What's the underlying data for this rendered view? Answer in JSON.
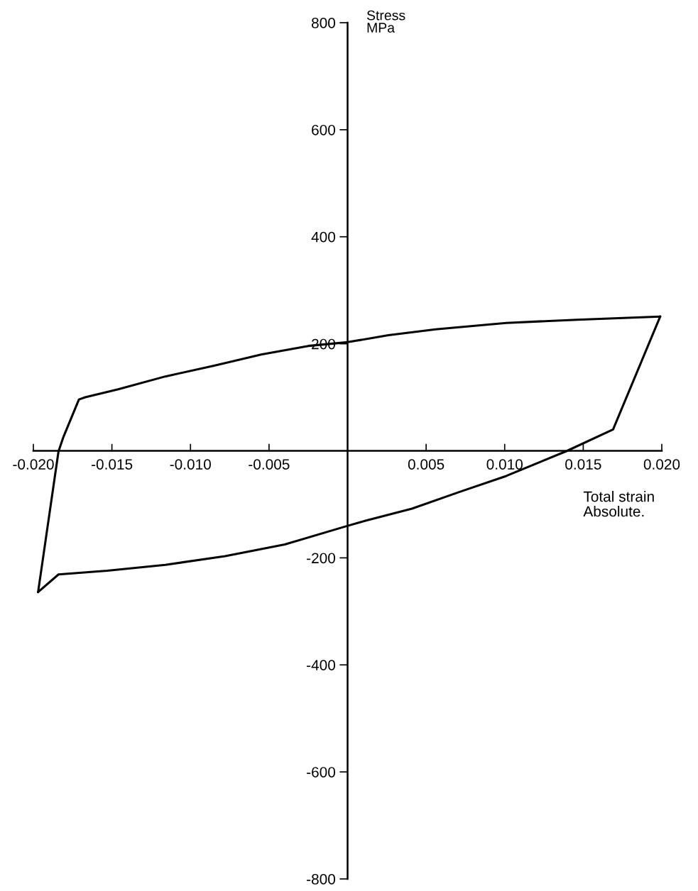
{
  "chart_data": {
    "type": "line",
    "xlabel": "Total strain\nAbsolute.",
    "ylabel": "Stress\nMPa",
    "series": [
      {
        "color": "#000000",
        "x": [
          -0.0197,
          -0.0184,
          -0.0181,
          -0.0171,
          -0.0167,
          -0.0146,
          -0.0116,
          -0.0085,
          -0.0055,
          -0.0025,
          0.0,
          0.0026,
          0.0056,
          0.0101,
          0.0146,
          0.0199
        ],
        "values": [
          -264,
          -1,
          25,
          96,
          100,
          115,
          139,
          159,
          180,
          196,
          203,
          216,
          227,
          239,
          245,
          251
        ]
      },
      {
        "color": "#000000",
        "x": [
          0.0199,
          0.0169,
          0.0139,
          0.0101,
          0.0071,
          0.0041,
          0.0011,
          -0.0001,
          -0.004,
          -0.0078,
          -0.0116,
          -0.0153,
          -0.0184,
          -0.0197
        ],
        "values": [
          251,
          40,
          -1,
          -47,
          -77,
          -108,
          -131,
          -141,
          -175,
          -197,
          -213,
          -224,
          -231,
          -264
        ]
      }
    ],
    "xlim": [
      -0.02,
      0.02
    ],
    "ylim": [
      -800,
      800
    ],
    "xticks": [
      {
        "value": -0.02,
        "label": "-0.020"
      },
      {
        "value": -0.015,
        "label": "-0.015"
      },
      {
        "value": -0.01,
        "label": "-0.010"
      },
      {
        "value": -0.005,
        "label": "-0.005"
      },
      {
        "value": 0.005,
        "label": "0.005"
      },
      {
        "value": 0.01,
        "label": "0.010"
      },
      {
        "value": 0.015,
        "label": "0.015"
      },
      {
        "value": 0.02,
        "label": "0.020"
      }
    ],
    "yticks": [
      -800,
      -600,
      -400,
      -200,
      200,
      400,
      600,
      800
    ],
    "grid": false,
    "marker": "none",
    "line_style": "solid"
  }
}
